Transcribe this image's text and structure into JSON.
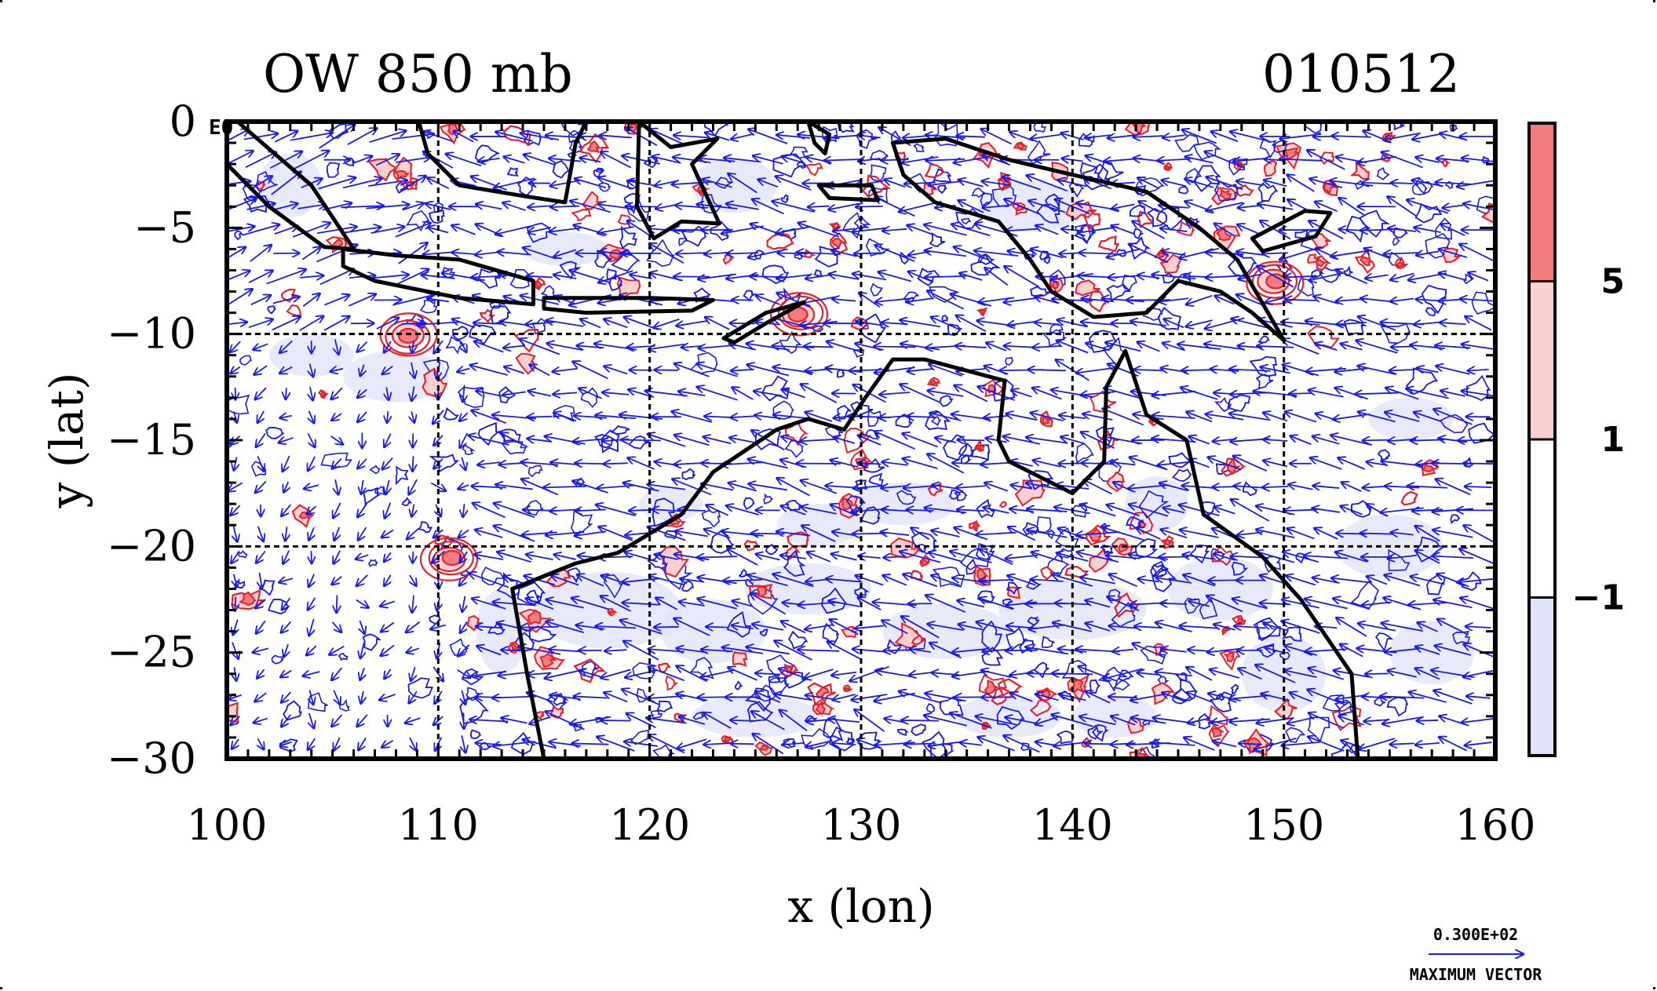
{
  "chart_data": {
    "type": "contour-vector-map",
    "title_left": "OW 850 mb",
    "title_right": "010512",
    "xlabel": "x (lon)",
    "ylabel": "y (lat)",
    "xlim": [
      100,
      160
    ],
    "ylim": [
      -30,
      0
    ],
    "x_ticks": [
      "100",
      "110",
      "120",
      "130",
      "140",
      "150",
      "160"
    ],
    "x_tick_values": [
      100,
      110,
      120,
      130,
      140,
      150,
      160
    ],
    "y_ticks": [
      "0",
      "−5",
      "−10",
      "−15",
      "−20",
      "−25",
      "−30"
    ],
    "y_tick_values": [
      0,
      -5,
      -10,
      -15,
      -20,
      -25,
      -30
    ],
    "corner_label": "E0",
    "grid": "dashed at 10 degree intervals",
    "colorbar": {
      "levels": [
        -1,
        1,
        5
      ],
      "labels": [
        "5",
        "1",
        "−1"
      ],
      "colors": [
        "#f47c7c",
        "#fbd0d0",
        "#ffffff",
        "#e0e2f8"
      ]
    },
    "vector_reference": {
      "value_label": "0.300E+02",
      "caption": "MAXIMUM VECTOR"
    },
    "features": {
      "strong_positive_centers": [
        [
          108.5,
          -10
        ],
        [
          127,
          -9
        ],
        [
          149.5,
          -7.5
        ],
        [
          110.5,
          -20.5
        ]
      ],
      "coastline": "Indonesia, New Guinea, northern and eastern Australia"
    },
    "colors": {
      "contour_positive": "#e8202a",
      "contour_negative": "#1a1aee",
      "vectors": "#1a1aee",
      "fill_strong": "#f47c7c",
      "fill_weak": "#fbd0d0",
      "fill_negative": "#e0e2f8",
      "coast": "#000000"
    }
  }
}
